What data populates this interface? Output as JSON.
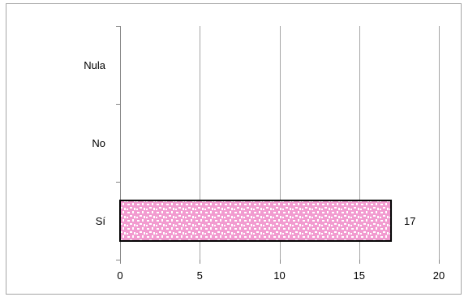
{
  "chart_data": {
    "type": "bar",
    "orientation": "horizontal",
    "categories": [
      "Sí",
      "No",
      "Nula"
    ],
    "values": [
      17,
      0,
      0
    ],
    "data_labels": [
      "17",
      "",
      ""
    ],
    "xlim": [
      0,
      20
    ],
    "x_ticks": [
      0,
      5,
      10,
      15,
      20
    ],
    "x_tick_labels": [
      "0",
      "5",
      "10",
      "15",
      "20"
    ],
    "title": "",
    "xlabel": "",
    "ylabel": "",
    "grid": "vertical gridlines",
    "legend": "none",
    "bar_color": "#f29bd0",
    "bar_pattern_color": "#ffffff",
    "bar_border_color": "#000000",
    "gridline_color": "#a6a6a6"
  }
}
